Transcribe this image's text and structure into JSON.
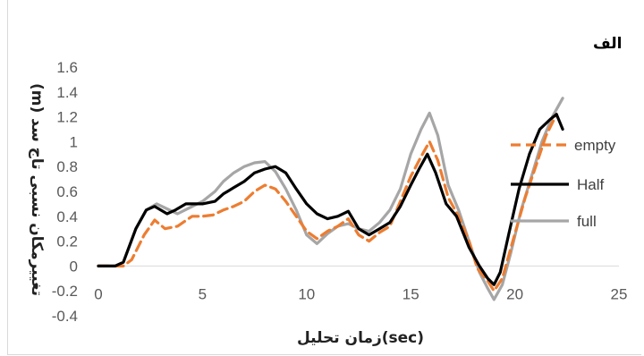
{
  "chart_data": {
    "type": "line",
    "panel_label": "الف",
    "xlabel": "زمان تحلیل(sec)",
    "ylabel": "تغییرمکان نسبی تاج سد (m)",
    "xlim": [
      0,
      25
    ],
    "ylim": [
      -0.4,
      1.6
    ],
    "x_ticks": [
      "0",
      "5",
      "10",
      "15",
      "20",
      "25"
    ],
    "y_ticks": [
      "1.6",
      "1.4",
      "1.2",
      "1",
      "0.8",
      "0.6",
      "0.4",
      "0.2",
      "0",
      "-0.2",
      "-0.4"
    ],
    "legend_position": "right",
    "series": [
      {
        "name": "empty",
        "color": "#ed7d31",
        "dash": "dashed",
        "points": [
          [
            0,
            0
          ],
          [
            1.2,
            0
          ],
          [
            1.6,
            0.05
          ],
          [
            2.2,
            0.25
          ],
          [
            2.7,
            0.37
          ],
          [
            3.2,
            0.3
          ],
          [
            3.8,
            0.32
          ],
          [
            4.5,
            0.4
          ],
          [
            5,
            0.4
          ],
          [
            5.5,
            0.41
          ],
          [
            6,
            0.45
          ],
          [
            6.5,
            0.48
          ],
          [
            7,
            0.52
          ],
          [
            7.5,
            0.6
          ],
          [
            8,
            0.65
          ],
          [
            8.5,
            0.62
          ],
          [
            9,
            0.52
          ],
          [
            9.5,
            0.4
          ],
          [
            10,
            0.28
          ],
          [
            10.5,
            0.22
          ],
          [
            11,
            0.28
          ],
          [
            11.5,
            0.32
          ],
          [
            12,
            0.38
          ],
          [
            12.5,
            0.25
          ],
          [
            13,
            0.2
          ],
          [
            13.5,
            0.27
          ],
          [
            14,
            0.32
          ],
          [
            14.5,
            0.52
          ],
          [
            15,
            0.72
          ],
          [
            15.5,
            0.88
          ],
          [
            15.9,
            1.0
          ],
          [
            16.3,
            0.85
          ],
          [
            16.8,
            0.55
          ],
          [
            17.3,
            0.4
          ],
          [
            17.8,
            0.2
          ],
          [
            18.2,
            -0.02
          ],
          [
            18.7,
            -0.12
          ],
          [
            19,
            -0.2
          ],
          [
            19.4,
            -0.1
          ],
          [
            19.9,
            0.2
          ],
          [
            20.5,
            0.55
          ],
          [
            21,
            0.8
          ],
          [
            21.5,
            1.05
          ],
          [
            22,
            1.22
          ]
        ]
      },
      {
        "name": "Half",
        "color": "#000000",
        "dash": "solid",
        "points": [
          [
            0,
            0
          ],
          [
            0.8,
            0
          ],
          [
            1.2,
            0.03
          ],
          [
            1.8,
            0.3
          ],
          [
            2.3,
            0.45
          ],
          [
            2.7,
            0.48
          ],
          [
            3.3,
            0.42
          ],
          [
            3.7,
            0.45
          ],
          [
            4.2,
            0.5
          ],
          [
            5,
            0.5
          ],
          [
            5.6,
            0.52
          ],
          [
            6,
            0.58
          ],
          [
            6.5,
            0.63
          ],
          [
            7,
            0.68
          ],
          [
            7.5,
            0.75
          ],
          [
            8,
            0.78
          ],
          [
            8.5,
            0.8
          ],
          [
            9,
            0.75
          ],
          [
            9.5,
            0.62
          ],
          [
            10,
            0.5
          ],
          [
            10.5,
            0.42
          ],
          [
            11,
            0.38
          ],
          [
            11.5,
            0.4
          ],
          [
            12,
            0.44
          ],
          [
            12.5,
            0.3
          ],
          [
            13,
            0.25
          ],
          [
            13.5,
            0.3
          ],
          [
            14,
            0.35
          ],
          [
            14.5,
            0.48
          ],
          [
            15,
            0.65
          ],
          [
            15.4,
            0.78
          ],
          [
            15.8,
            0.9
          ],
          [
            16.2,
            0.75
          ],
          [
            16.7,
            0.5
          ],
          [
            17.2,
            0.4
          ],
          [
            17.8,
            0.15
          ],
          [
            18.3,
            0.0
          ],
          [
            18.7,
            -0.1
          ],
          [
            19,
            -0.15
          ],
          [
            19.3,
            -0.05
          ],
          [
            19.7,
            0.25
          ],
          [
            20.2,
            0.62
          ],
          [
            20.7,
            0.9
          ],
          [
            21.2,
            1.1
          ],
          [
            21.7,
            1.18
          ],
          [
            22,
            1.22
          ],
          [
            22.3,
            1.1
          ]
        ]
      },
      {
        "name": "full",
        "color": "#a6a6a6",
        "dash": "solid",
        "points": [
          [
            0,
            0
          ],
          [
            0.8,
            0
          ],
          [
            1.2,
            0.03
          ],
          [
            1.8,
            0.3
          ],
          [
            2.3,
            0.45
          ],
          [
            2.8,
            0.5
          ],
          [
            3.3,
            0.46
          ],
          [
            3.8,
            0.42
          ],
          [
            4.4,
            0.47
          ],
          [
            5,
            0.52
          ],
          [
            5.6,
            0.6
          ],
          [
            6,
            0.68
          ],
          [
            6.5,
            0.75
          ],
          [
            7,
            0.8
          ],
          [
            7.5,
            0.83
          ],
          [
            8,
            0.84
          ],
          [
            8.5,
            0.76
          ],
          [
            9,
            0.62
          ],
          [
            9.5,
            0.45
          ],
          [
            10,
            0.25
          ],
          [
            10.5,
            0.18
          ],
          [
            11,
            0.26
          ],
          [
            11.5,
            0.32
          ],
          [
            12,
            0.34
          ],
          [
            12.5,
            0.3
          ],
          [
            13,
            0.28
          ],
          [
            13.5,
            0.35
          ],
          [
            14,
            0.45
          ],
          [
            14.5,
            0.62
          ],
          [
            15,
            0.9
          ],
          [
            15.5,
            1.1
          ],
          [
            15.9,
            1.23
          ],
          [
            16.3,
            1.05
          ],
          [
            16.8,
            0.65
          ],
          [
            17.3,
            0.45
          ],
          [
            17.8,
            0.2
          ],
          [
            18.3,
            -0.05
          ],
          [
            18.7,
            -0.18
          ],
          [
            19,
            -0.27
          ],
          [
            19.4,
            -0.15
          ],
          [
            19.8,
            0.1
          ],
          [
            20.3,
            0.45
          ],
          [
            20.8,
            0.72
          ],
          [
            21.3,
            1.0
          ],
          [
            21.8,
            1.2
          ],
          [
            22.3,
            1.35
          ]
        ]
      }
    ]
  }
}
